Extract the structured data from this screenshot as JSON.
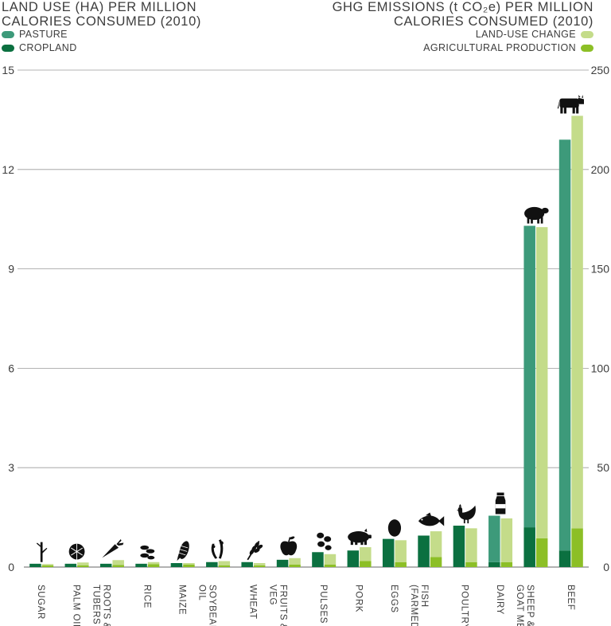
{
  "header_left": {
    "line1": "LAND USE (HA) PER MILLION",
    "line2": "CALORIES CONSUMED (2010)"
  },
  "header_right": {
    "line1": "GHG EMISSIONS (t CO₂e) PER MILLION",
    "line2": "CALORIES CONSUMED (2010)"
  },
  "legend": {
    "pasture": "PASTURE",
    "cropland": "CROPLAND",
    "land_use_change": "LAND-USE CHANGE",
    "agricultural_production": "AGRICULTURAL PRODUCTION"
  },
  "colors": {
    "pasture": "#3d9a7a",
    "cropland": "#0b7040",
    "land_use_change": "#c4dc8a",
    "agricultural_production": "#8cbf26",
    "grid": "#9a9a9a",
    "icon": "#111111"
  },
  "chart_data": {
    "type": "bar",
    "categories": [
      "SUGAR",
      "PALM OIL",
      "ROOTS & TUBERS",
      "RICE",
      "MAIZE",
      "SOYBEAN OIL",
      "WHEAT",
      "FRUITS & VEG",
      "PULSES",
      "PORK",
      "EGGS",
      "FISH (FARMED)",
      "POULTRY",
      "DAIRY",
      "SHEEP & GOAT MEAT",
      "BEEF"
    ],
    "category_label_lines": [
      [
        "SUGAR"
      ],
      [
        "PALM OIL"
      ],
      [
        "ROOTS &",
        "TUBERS"
      ],
      [
        "RICE"
      ],
      [
        "MAIZE"
      ],
      [
        "SOYBEAN",
        "OIL"
      ],
      [
        "WHEAT"
      ],
      [
        "FRUITS &",
        "VEG"
      ],
      [
        "PULSES"
      ],
      [
        "PORK"
      ],
      [
        "EGGS"
      ],
      [
        "FISH",
        "(FARMED)"
      ],
      [
        "POULTRY"
      ],
      [
        "DAIRY"
      ],
      [
        "SHEEP &",
        "GOAT MEAT"
      ],
      [
        "BEEF"
      ]
    ],
    "icons": [
      "sugarcane-icon",
      "palm-fruit-icon",
      "carrot-icon",
      "rice-icon",
      "maize-icon",
      "soybean-icon",
      "wheat-icon",
      "apple-icon",
      "beans-icon",
      "pig-icon",
      "egg-icon",
      "fish-icon",
      "chicken-icon",
      "milk-bottle-icon",
      "sheep-icon",
      "cow-icon"
    ],
    "left_axis": {
      "label": "LAND USE (HA) PER MILLION CALORIES CONSUMED (2010)",
      "ylim": [
        0,
        15
      ],
      "ticks": [
        0,
        3,
        6,
        9,
        12,
        15
      ]
    },
    "right_axis": {
      "label": "GHG EMISSIONS (t CO₂e) PER MILLION CALORIES CONSUMED (2010)",
      "ylim": [
        0,
        250
      ],
      "ticks": [
        0,
        50,
        100,
        150,
        200,
        250
      ]
    },
    "series": [
      {
        "name": "CROPLAND",
        "axis": "left",
        "values": [
          0.1,
          0.1,
          0.1,
          0.1,
          0.12,
          0.15,
          0.15,
          0.22,
          0.45,
          0.5,
          0.85,
          0.95,
          1.25,
          0.15,
          1.2,
          0.5
        ]
      },
      {
        "name": "PASTURE",
        "axis": "left",
        "values": [
          0,
          0,
          0,
          0,
          0,
          0,
          0,
          0,
          0,
          0,
          0,
          0,
          0,
          1.4,
          9.1,
          12.4
        ]
      },
      {
        "name": "AGRICULTURAL PRODUCTION",
        "axis": "right",
        "values": [
          0.8,
          0.8,
          1,
          1.5,
          1.2,
          0.8,
          0.8,
          1.2,
          1.2,
          3,
          2.5,
          5,
          2.5,
          2.5,
          14.5,
          19.5
        ]
      },
      {
        "name": "LAND-USE CHANGE",
        "axis": "right",
        "values": [
          0.7,
          1.5,
          2.5,
          1,
          0.8,
          2.2,
          1.2,
          3.3,
          5.3,
          7,
          11,
          13,
          17,
          22,
          156.5,
          207.5
        ]
      }
    ],
    "ylim": [
      0,
      15
    ],
    "grid": true,
    "legend_position": "top"
  }
}
